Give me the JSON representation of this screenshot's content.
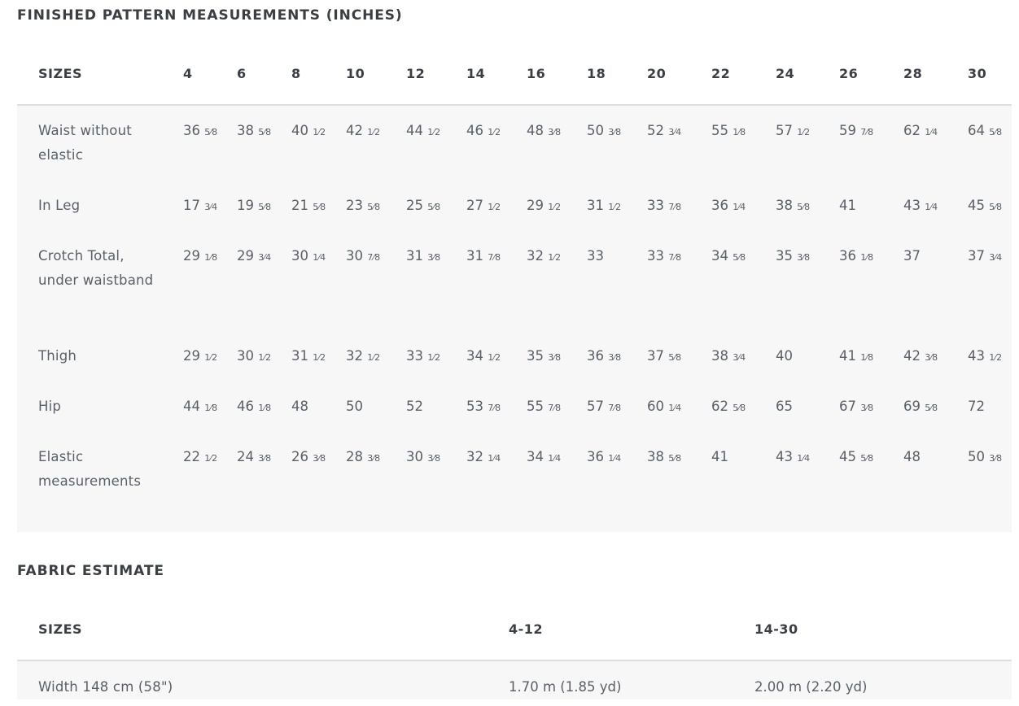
{
  "measurements": {
    "title": "FINISHED PATTERN MEASUREMENTS (INCHES)",
    "sizes_label": "SIZES",
    "sizes": [
      "4",
      "6",
      "8",
      "10",
      "12",
      "14",
      "16",
      "18",
      "20",
      "22",
      "24",
      "26",
      "28",
      "30"
    ],
    "rows": [
      {
        "label": "Waist without elastic",
        "values": [
          "36 5⁄8",
          "38 5⁄8",
          "40 1⁄2",
          "42 1⁄2",
          "44 1⁄2",
          "46 1⁄2",
          "48 3⁄8",
          "50 3⁄8",
          "52 3⁄4",
          "55 1⁄8",
          "57 1⁄2",
          "59 7⁄8",
          "62 1⁄4",
          "64 5⁄8"
        ]
      },
      {
        "label": "In Leg",
        "values": [
          "17 3⁄4",
          "19 5⁄8",
          "21 5⁄8",
          "23 5⁄8",
          "25 5⁄8",
          "27 1⁄2",
          "29 1⁄2",
          "31 1⁄2",
          "33 7⁄8",
          "36 1⁄4",
          "38 5⁄8",
          "41",
          "43 1⁄4",
          "45 5⁄8"
        ]
      },
      {
        "label": "Crotch Total, under waistband",
        "values": [
          "29 1⁄8",
          "29 3⁄4",
          "30 1⁄4",
          "30 7⁄8",
          "31 3⁄8",
          "31 7⁄8",
          "32 1⁄2",
          "33",
          "33 7⁄8",
          "34 5⁄8",
          "35 3⁄8",
          "36 1⁄8",
          "37",
          "37 3⁄4"
        ]
      },
      {
        "label": "Thigh",
        "values": [
          "29 1⁄2",
          "30 1⁄2",
          "31 1⁄2",
          "32 1⁄2",
          "33 1⁄2",
          "34 1⁄2",
          "35 3⁄8",
          "36 3⁄8",
          "37 5⁄8",
          "38 3⁄4",
          "40",
          "41 1⁄8",
          "42 3⁄8",
          "43 1⁄2"
        ]
      },
      {
        "label": "Hip",
        "values": [
          "44 1⁄8",
          "46 1⁄8",
          "48",
          "50",
          "52",
          "53 7⁄8",
          "55 7⁄8",
          "57 7⁄8",
          "60 1⁄4",
          "62 5⁄8",
          "65",
          "67 3⁄8",
          "69 5⁄8",
          "72"
        ]
      },
      {
        "label": "Elastic measurements",
        "values": [
          "22 1⁄2",
          "24 3⁄8",
          "26 3⁄8",
          "28 3⁄8",
          "30 3⁄8",
          "32 1⁄4",
          "34 1⁄4",
          "36 1⁄4",
          "38 5⁄8",
          "41",
          "43 1⁄4",
          "45 5⁄8",
          "48",
          "50 3⁄8"
        ]
      }
    ]
  },
  "fabric": {
    "title": "FABRIC ESTIMATE",
    "sizes_label": "SIZES",
    "columns": [
      "4-12",
      "14-30"
    ],
    "rows": [
      {
        "label": "Width 148 cm (58\")",
        "values": [
          "1.70 m (1.85 yd)",
          "2.00 m (2.20 yd)"
        ]
      }
    ]
  }
}
